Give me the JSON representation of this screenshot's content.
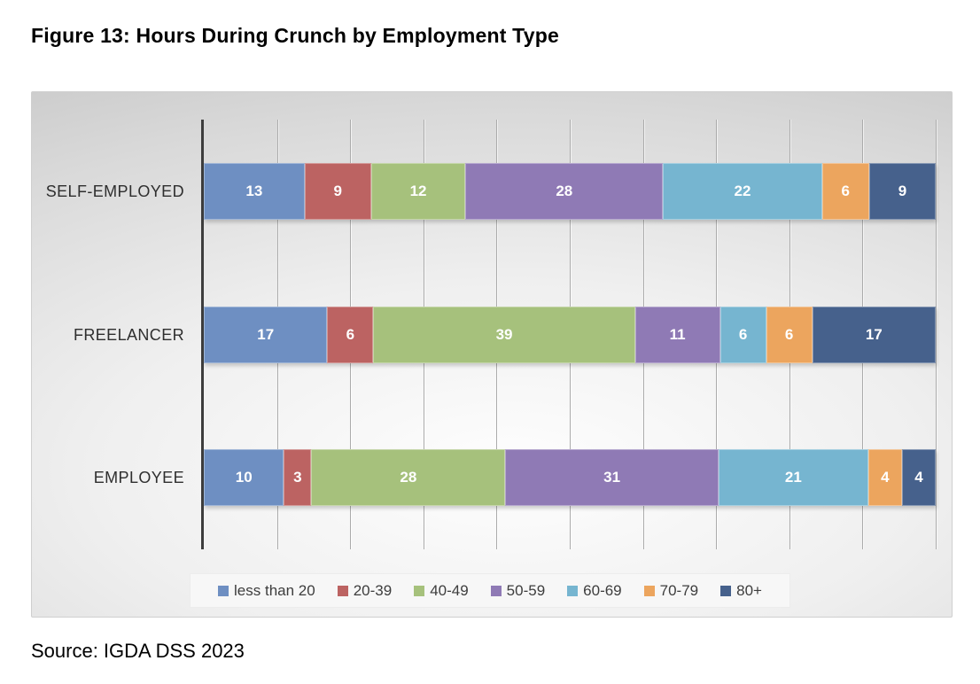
{
  "title": "Figure 13: Hours During Crunch by Employment Type",
  "source": "Source: IGDA DSS 2023",
  "chart_data": {
    "type": "bar",
    "orientation": "horizontal",
    "stacking": "100%-stacked",
    "title": "Figure 13: Hours During Crunch by Employment Type",
    "categories": [
      "SELF-EMPLOYED",
      "FREELANCER",
      "EMPLOYEE"
    ],
    "series": [
      {
        "name": "less than 20",
        "color": "#6e8fc2",
        "values": [
          13,
          17,
          10
        ]
      },
      {
        "name": "20-39",
        "color": "#bc6362",
        "values": [
          9,
          6,
          3
        ]
      },
      {
        "name": "40-49",
        "color": "#a6c17c",
        "values": [
          12,
          39,
          28
        ]
      },
      {
        "name": "50-59",
        "color": "#8f7ab5",
        "values": [
          28,
          11,
          31
        ]
      },
      {
        "name": "60-69",
        "color": "#76b5d0",
        "values": [
          22,
          6,
          21
        ]
      },
      {
        "name": "70-79",
        "color": "#eca55e",
        "values": [
          6,
          6,
          4
        ]
      },
      {
        "name": "80+",
        "color": "#46618c",
        "values": [
          9,
          17,
          4
        ]
      }
    ],
    "value_labels_shown": true,
    "legend_position": "bottom",
    "grid": true,
    "gridline_count": 10,
    "axis_range_percent": [
      0,
      100
    ],
    "source": "Source: IGDA DSS 2023"
  }
}
